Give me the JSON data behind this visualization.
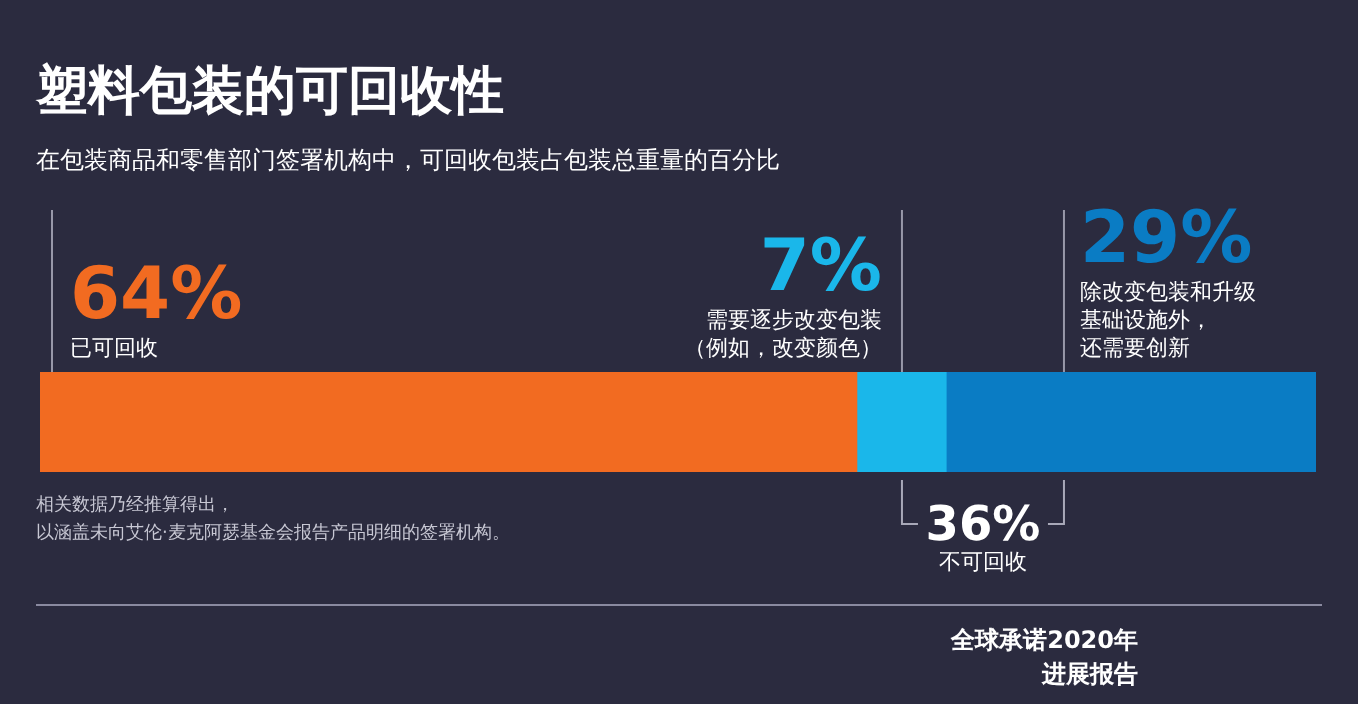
{
  "chart_data": {
    "type": "bar",
    "orientation": "horizontal",
    "stacked": true,
    "title": "塑料包装的可回收性",
    "subtitle": "在包装商品和零售部门签署机构中，可回收包装占包装总重量的百分比",
    "categories": [
      null
    ],
    "legend": false,
    "series": [
      {
        "name": "已可回收",
        "color": "#f26b21",
        "values": [
          64
        ],
        "value_labels": [
          "64%"
        ]
      },
      {
        "name": "需要逐步改变包装（例如，改变颜色）",
        "color": "#1ab7ea",
        "values": [
          7
        ],
        "value_labels": [
          "7%"
        ]
      },
      {
        "name": "除改变包装和升级基础设施外，还需要创新",
        "color": "#0a7cc4",
        "values": [
          29
        ],
        "value_labels": [
          "29%"
        ]
      }
    ],
    "annotations": [
      "36%",
      "不可回收",
      "相关数据乃经推算得出，",
      "以涵盖未向艾伦·麦克阿瑟基金会报告产品明细的签署机构。",
      "全球承诺2020年",
      "进展报告"
    ]
  }
}
